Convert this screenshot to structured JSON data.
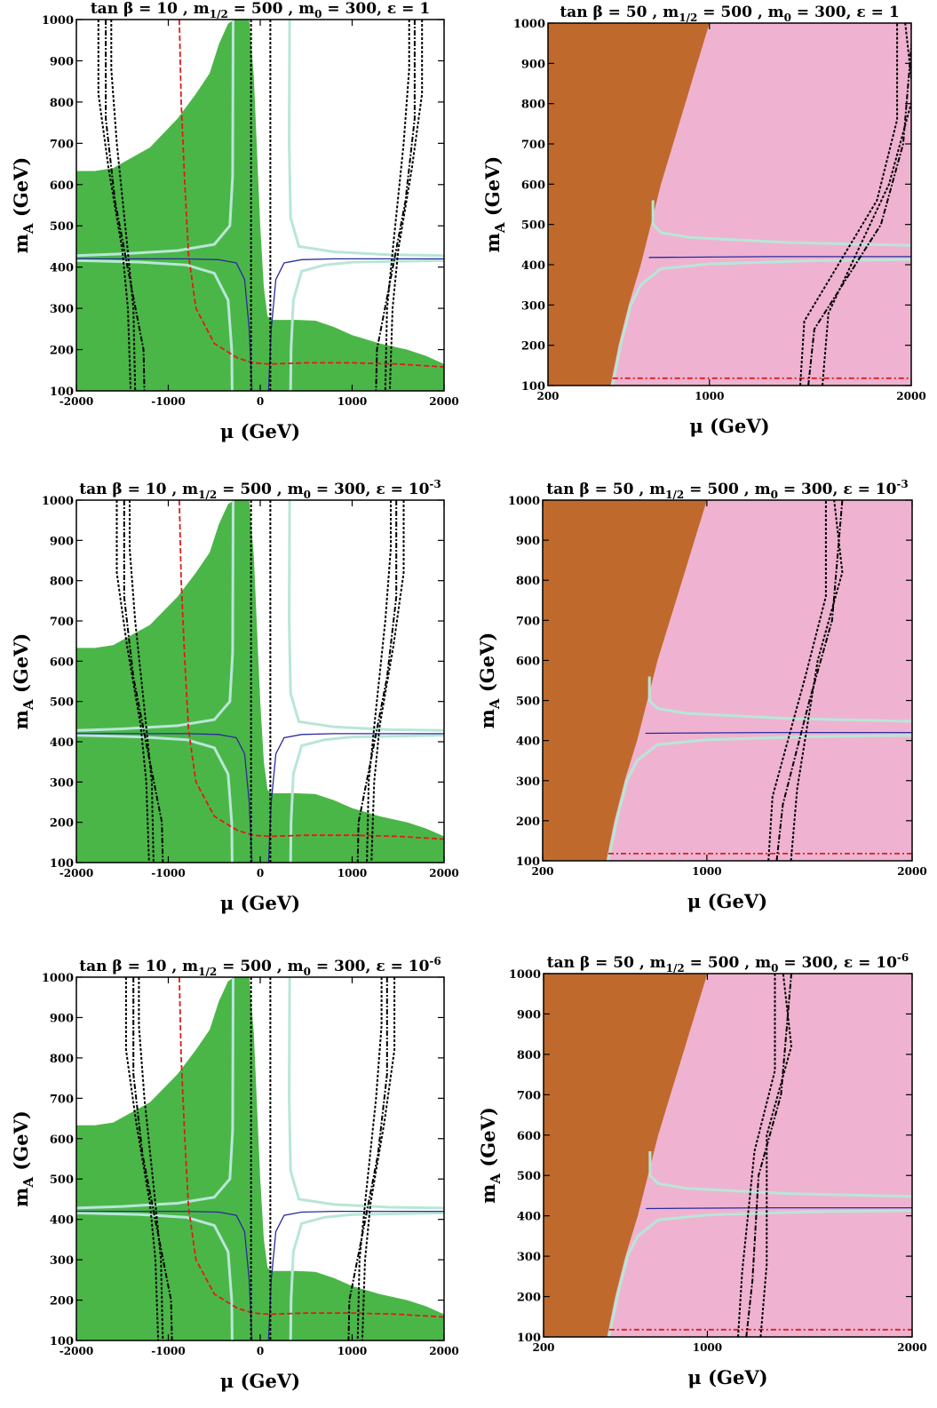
{
  "colors": {
    "green_region": "#4bb648",
    "brown_region": "#bf6a2c",
    "pink_region": "#efb3d1",
    "teal_line": "#b8e6d8",
    "blue_line": "#2a2a9c",
    "red_line": "#e01b1b",
    "black_line": "#000000"
  },
  "chart_data": [
    {
      "type": "contour",
      "title_main": "tan β = 10 ,  m",
      "title_sub": "1/2",
      "title_mid": " = 500 ,  m",
      "title_sub2": "0",
      "title_end": " = 300, ε = 1",
      "title_sup": "",
      "xlabel": "μ (GeV)",
      "ylabel_main": "m",
      "ylabel_sub": "A",
      "ylabel_end": " (GeV)",
      "xlim": [
        -2000,
        2000
      ],
      "ylim": [
        100,
        1000
      ],
      "xticks": [
        "-2000",
        "-1000",
        "0",
        "1000",
        "2000"
      ],
      "yticks": [
        "100",
        "200",
        "300",
        "400",
        "500",
        "600",
        "700",
        "800",
        "900",
        "1000"
      ],
      "black_left_mu": -1300,
      "black_right_mu": 1300
    },
    {
      "type": "contour",
      "title_main": "tan β = 50 ,  m",
      "title_sub": "1/2",
      "title_mid": " = 500 ,  m",
      "title_sub2": "0",
      "title_end": " = 300, ε = 1",
      "title_sup": "",
      "xlabel": "μ (GeV)",
      "ylabel_main": "m",
      "ylabel_sub": "A",
      "ylabel_end": " (GeV)",
      "xlim": [
        200,
        2000
      ],
      "ylim": [
        100,
        1000
      ],
      "xticks": [
        "200",
        "1000",
        "2000"
      ],
      "yticks": [
        "100",
        "200",
        "300",
        "400",
        "500",
        "600",
        "700",
        "800",
        "900",
        "1000"
      ],
      "black_bottom_mu": 1450,
      "black_top_mu": 1950
    },
    {
      "type": "contour",
      "title_main": "tan β = 10 ,  m",
      "title_sub": "1/2",
      "title_mid": " = 500 ,  m",
      "title_sub2": "0",
      "title_end": " = 300, ε = 10",
      "title_sup": "-3",
      "xlabel": "μ (GeV)",
      "ylabel_main": "m",
      "ylabel_sub": "A",
      "ylabel_end": " (GeV)",
      "xlim": [
        -2000,
        2000
      ],
      "ylim": [
        100,
        1000
      ],
      "xticks": [
        "-2000",
        "-1000",
        "0",
        "1000",
        "2000"
      ],
      "yticks": [
        "100",
        "200",
        "300",
        "400",
        "500",
        "600",
        "700",
        "800",
        "900",
        "1000"
      ],
      "black_left_mu": -1100,
      "black_right_mu": 1100
    },
    {
      "type": "contour",
      "title_main": "tan β = 50 ,  m",
      "title_sub": "1/2",
      "title_mid": " = 500 ,  m",
      "title_sub2": "0",
      "title_end": " = 300, ε = 10",
      "title_sup": "-3",
      "xlabel": "μ (GeV)",
      "ylabel_main": "m",
      "ylabel_sub": "A",
      "ylabel_end": " (GeV)",
      "xlim": [
        200,
        2000
      ],
      "ylim": [
        100,
        1000
      ],
      "xticks": [
        "200",
        "1000",
        "2000"
      ],
      "yticks": [
        "100",
        "200",
        "300",
        "400",
        "500",
        "600",
        "700",
        "800",
        "900",
        "1000"
      ],
      "black_bottom_mu": 1300,
      "black_top_mu": 1600
    },
    {
      "type": "contour",
      "title_main": "tan β = 10 ,  m",
      "title_sub": "1/2",
      "title_mid": " = 500 ,  m",
      "title_sub2": "0",
      "title_end": " = 300, ε = 10",
      "title_sup": "-6",
      "xlabel": "μ (GeV)",
      "ylabel_main": "m",
      "ylabel_sub": "A",
      "ylabel_end": " (GeV)",
      "xlim": [
        -2000,
        2000
      ],
      "ylim": [
        100,
        1000
      ],
      "xticks": [
        "-2000",
        "-1000",
        "0",
        "1000",
        "2000"
      ],
      "yticks": [
        "100",
        "200",
        "300",
        "400",
        "500",
        "600",
        "700",
        "800",
        "900",
        "1000"
      ],
      "black_left_mu": -1000,
      "black_right_mu": 1000
    },
    {
      "type": "contour",
      "title_main": "tan β = 50 ,  m",
      "title_sub": "1/2",
      "title_mid": " = 500 ,  m",
      "title_sub2": "0",
      "title_end": " = 300, ε = 10",
      "title_sup": "-6",
      "xlabel": "μ (GeV)",
      "ylabel_main": "m",
      "ylabel_sub": "A",
      "ylabel_end": " (GeV)",
      "xlim": [
        200,
        2000
      ],
      "ylim": [
        100,
        1000
      ],
      "xticks": [
        "200",
        "1000",
        "2000"
      ],
      "yticks": [
        "100",
        "200",
        "300",
        "400",
        "500",
        "600",
        "700",
        "800",
        "900",
        "1000"
      ],
      "black_bottom_mu": 1150,
      "black_top_mu": 1350
    }
  ]
}
